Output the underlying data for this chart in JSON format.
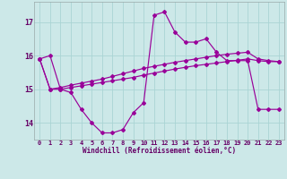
{
  "xlabel": "Windchill (Refroidissement éolien,°C)",
  "hours": [
    0,
    1,
    2,
    3,
    4,
    5,
    6,
    7,
    8,
    9,
    10,
    11,
    12,
    13,
    14,
    15,
    16,
    17,
    18,
    19,
    20,
    21,
    22,
    23
  ],
  "curve1": [
    15.9,
    16.0,
    15.0,
    14.9,
    14.4,
    14.0,
    13.7,
    13.7,
    13.8,
    14.3,
    14.6,
    17.2,
    17.3,
    16.7,
    16.4,
    16.4,
    16.5,
    16.1,
    15.85,
    15.85,
    15.85,
    14.4,
    14.4,
    14.4
  ],
  "curve2": [
    15.9,
    15.0,
    15.0,
    15.05,
    15.1,
    15.15,
    15.2,
    15.25,
    15.3,
    15.35,
    15.42,
    15.48,
    15.54,
    15.6,
    15.65,
    15.7,
    15.74,
    15.78,
    15.82,
    15.86,
    15.9,
    15.85,
    15.82,
    15.82
  ],
  "curve3": [
    15.9,
    15.0,
    15.05,
    15.12,
    15.18,
    15.24,
    15.3,
    15.38,
    15.46,
    15.54,
    15.62,
    15.68,
    15.74,
    15.8,
    15.85,
    15.9,
    15.95,
    16.0,
    16.04,
    16.07,
    16.1,
    15.9,
    15.85,
    15.82
  ],
  "line_color": "#990099",
  "bg_color": "#cce8e8",
  "grid_color": "#aad4d4",
  "ylim": [
    13.5,
    17.6
  ],
  "yticks": [
    14,
    15,
    16,
    17
  ],
  "xticks": [
    0,
    1,
    2,
    3,
    4,
    5,
    6,
    7,
    8,
    9,
    10,
    11,
    12,
    13,
    14,
    15,
    16,
    17,
    18,
    19,
    20,
    21,
    22,
    23
  ]
}
